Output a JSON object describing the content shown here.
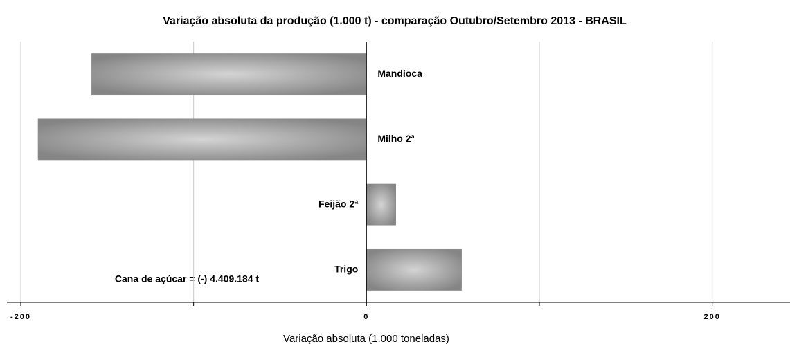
{
  "chart_data": {
    "type": "hbar",
    "title": "Variação absoluta da produção (1.000 t) - comparação  Outubro/Setembro 2013 - BRASIL",
    "categories": [
      "Mandioca",
      "Milho 2ª",
      "Feijão 2ª",
      "Trigo"
    ],
    "values": [
      -159,
      -190,
      17,
      55
    ],
    "color": "#8c8c8c",
    "xlim": [
      -200,
      245
    ],
    "xticks": [
      -200,
      0,
      200
    ],
    "minor_xticks": [
      -100,
      100
    ],
    "grid": true,
    "xlabel": "Variação absoluta (1.000 toneladas)",
    "annotation": "Cana de açúcar = (-) 4.409.184 t"
  }
}
